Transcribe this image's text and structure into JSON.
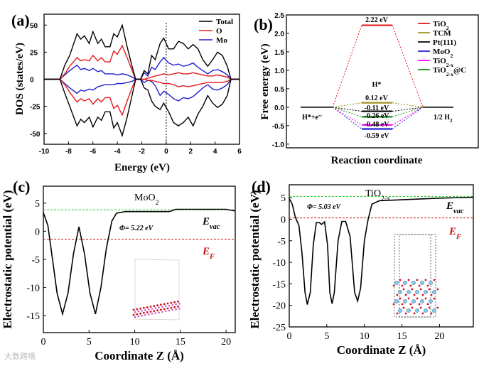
{
  "figure": {
    "watermark": "大数跨境"
  },
  "chart_data": [
    {
      "panel": "(a)",
      "type": "line",
      "xlabel": "Energy (eV)",
      "ylabel": "DOS (states/eV)",
      "xlim": [
        -10,
        6
      ],
      "ylim": [
        -60,
        60
      ],
      "xticks": [
        -10,
        -8,
        -6,
        -4,
        -2,
        0,
        2,
        4,
        6
      ],
      "yticks": [
        -50,
        -25,
        0,
        25,
        50
      ],
      "fermi_marker": 0,
      "legend_position": "top-right",
      "x": [
        -10,
        -8.7,
        -8.3,
        -7.9,
        -7.3,
        -7,
        -6.7,
        -6.3,
        -6,
        -5.6,
        -5.3,
        -5,
        -4.6,
        -4.3,
        -4,
        -3.6,
        -3.2,
        -2.8,
        -2.5,
        -2.1,
        -1.8,
        -1.5,
        -1.2,
        -0.9,
        -0.5,
        -0.2,
        0.2,
        0.6,
        1,
        1.4,
        1.8,
        2.2,
        2.6,
        3,
        3.4,
        3.8,
        4.2,
        4.6,
        5,
        5.3,
        6
      ],
      "series": [
        {
          "name": "Total",
          "color": "#000000",
          "up": [
            0,
            0,
            13,
            22,
            42,
            37,
            40,
            33,
            44,
            33,
            37,
            30,
            30,
            42,
            39,
            50,
            30,
            12,
            0,
            0,
            8,
            5,
            22,
            18,
            33,
            38,
            28,
            28,
            35,
            33,
            28,
            32,
            28,
            18,
            12,
            18,
            25,
            22,
            12,
            0,
            0
          ],
          "down": [
            0,
            0,
            -13,
            -25,
            -43,
            -37,
            -40,
            -35,
            -44,
            -35,
            -38,
            -30,
            -30,
            -45,
            -40,
            -52,
            -35,
            -15,
            0,
            0,
            -8,
            -10,
            -20,
            -25,
            -28,
            -22,
            -30,
            -40,
            -43,
            -40,
            -35,
            -43,
            -32,
            -25,
            -15,
            -22,
            -26,
            -23,
            -15,
            0,
            0
          ]
        },
        {
          "name": "O",
          "color": "#e41a1c",
          "up": [
            0,
            0,
            5,
            12,
            20,
            17,
            18,
            17,
            22,
            17,
            20,
            16,
            16,
            26,
            23,
            31,
            20,
            8,
            0,
            0,
            0,
            1,
            2,
            3,
            4,
            5,
            4,
            5,
            6,
            5,
            5,
            6,
            5,
            4,
            3,
            3,
            4,
            3,
            2,
            0,
            0
          ],
          "down": [
            0,
            0,
            -5,
            -12,
            -21,
            -18,
            -20,
            -18,
            -23,
            -18,
            -21,
            -17,
            -17,
            -27,
            -24,
            -33,
            -20,
            -8,
            0,
            0,
            0,
            -1,
            -1,
            -2,
            -3,
            -4,
            -4,
            -5,
            -7,
            -6,
            -7,
            -6,
            -5,
            -4,
            -3,
            -3,
            -3,
            -3,
            -2,
            0,
            0
          ]
        },
        {
          "name": "Mo",
          "color": "#1f1fd0",
          "up": [
            0,
            0,
            4,
            8,
            13,
            9,
            10,
            8,
            10,
            7,
            8,
            5,
            5,
            5,
            4,
            5,
            4,
            2,
            0,
            0,
            6,
            3,
            11,
            9,
            16,
            20,
            15,
            13,
            14,
            12,
            13,
            15,
            11,
            8,
            5,
            8,
            9,
            7,
            4,
            0,
            0
          ],
          "down": [
            0,
            0,
            -4,
            -8,
            -13,
            -10,
            -11,
            -9,
            -10,
            -7,
            -6,
            -5,
            -5,
            -5,
            -4,
            -4,
            -3,
            -2,
            0,
            0,
            -3,
            -1,
            -2,
            -6,
            -15,
            -11,
            -14,
            -18,
            -20,
            -17,
            -18,
            -16,
            -12,
            -8,
            -5,
            -9,
            -10,
            -8,
            -5,
            0,
            0
          ]
        }
      ]
    },
    {
      "panel": "(b)",
      "type": "line",
      "xlabel": "Reaction coordinate",
      "ylabel": "Free energy (eV)",
      "ylim": [
        -1.1,
        2.5
      ],
      "yticks": [
        "-1.0",
        "-0.5",
        "0.0",
        "0.5",
        "1.0",
        "1.5",
        "2.0",
        "2.5"
      ],
      "states": [
        "H*+e⁻",
        "H*",
        "1/2 H₂"
      ],
      "state_labels": {
        "initial": "H*+e",
        "initial_sup": "-",
        "middle": "H*",
        "final": "1/2 H",
        "final_sub": "2"
      },
      "legend_position": "top-right",
      "series": [
        {
          "name": "TiO",
          "sub": "2",
          "suffix": "",
          "color": "#e41a1c",
          "value": 2.22,
          "label": "2.22 eV"
        },
        {
          "name": "TCM",
          "sub": "",
          "suffix": "",
          "color": "#a09020",
          "value": 0.12,
          "label": "0.12 eV"
        },
        {
          "name": "Pt(111)",
          "sub": "",
          "suffix": "",
          "color": "#000000",
          "value": -0.11,
          "label": "-0.11 eV"
        },
        {
          "name": "MoO",
          "sub": "2",
          "suffix": "",
          "color": "#1f1fd0",
          "value": -0.59,
          "label": "-0.59 eV"
        },
        {
          "name": "TiO",
          "sub": "2-x",
          "suffix": "",
          "color": "#ff00ff",
          "value": -0.48,
          "label": "-0.48 eV"
        },
        {
          "name": "TiO",
          "sub": "2-x",
          "suffix": "@C",
          "color": "#1a8a1a",
          "value": -0.26,
          "label": "-0.26 eV"
        }
      ]
    },
    {
      "panel": "(c)",
      "type": "line",
      "title": "MoO",
      "title_sub": "2",
      "xlabel": "Coordinate Z (Å)",
      "ylabel": "Electrostatic potential (eV)",
      "xlim": [
        0,
        21
      ],
      "ylim": [
        -18,
        8
      ],
      "xticks": [
        0,
        5,
        10,
        15,
        20
      ],
      "yticks": [
        -15,
        -10,
        -5,
        0,
        5
      ],
      "E_vac": 3.8,
      "E_F": -1.42,
      "annotations": {
        "phi": "Φ= 5.22 eV",
        "evac": "E",
        "evac_sub": "vac",
        "ef": "E",
        "ef_sub": "F"
      },
      "x": [
        0,
        0.5,
        1,
        1.5,
        2.1,
        2.7,
        3.3,
        3.9,
        4.5,
        5.1,
        5.7,
        6.3,
        6.9,
        7.5,
        8,
        9,
        13.8,
        14.5,
        20,
        21
      ],
      "y": [
        3.3,
        1,
        -5,
        -11,
        -14.7,
        -11,
        -4,
        0.8,
        -4,
        -11,
        -14.7,
        -10,
        -3,
        1.8,
        3.2,
        3.5,
        3.5,
        3.9,
        3.9,
        3.6
      ]
    },
    {
      "panel": "(d)",
      "type": "line",
      "title": "TiO",
      "title_sub": "2-x",
      "xlabel": "Coordinate Z (Å)",
      "ylabel": "Electrostatic potential (eV)",
      "xlim": [
        0,
        24.5
      ],
      "ylim": [
        -25,
        8
      ],
      "xticks": [
        0,
        5,
        10,
        15,
        20
      ],
      "yticks": [
        -25,
        -20,
        -15,
        -10,
        -5,
        0,
        5
      ],
      "E_vac": 5.3,
      "E_F": 0.3,
      "annotations": {
        "phi": "Φ= 5.03 eV",
        "evac": "E",
        "evac_sub": "vac",
        "ef": "E",
        "ef_sub": "F"
      },
      "x": [
        0,
        0.4,
        0.8,
        1.3,
        1.7,
        2.1,
        2.4,
        2.8,
        3.2,
        3.6,
        4,
        4.3,
        4.7,
        5.1,
        5.4,
        5.7,
        6,
        6.5,
        7,
        7.5,
        8.1,
        8.7,
        9.1,
        9.5,
        10,
        10.5,
        11,
        12,
        20,
        24.5
      ],
      "y": [
        4.8,
        3.5,
        0.5,
        -1.5,
        -8,
        -17,
        -19.8,
        -17,
        -6,
        -0.8,
        -0.8,
        -1.2,
        -0.6,
        -6,
        -17,
        -19.6,
        -17,
        -5,
        -0.5,
        -0.5,
        -4,
        -17,
        -19,
        -16,
        -5,
        0,
        3.5,
        4.3,
        4.9,
        5.1
      ]
    }
  ]
}
